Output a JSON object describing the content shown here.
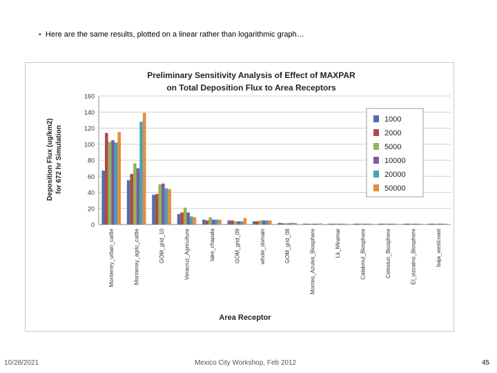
{
  "slide": {
    "bullet": "Here are the same results, plotted on a linear rather than logarithmic graph…",
    "footer_date": "10/28/2021",
    "footer_center": "Mexico City Workshop, Feb 2012",
    "page_number": "45"
  },
  "chart_data": {
    "type": "bar",
    "title": "Preliminary Sensitivity Analysis of Effect of MAXPAR",
    "subtitle": "on Total Deposition Flux to Area Receptors",
    "xlabel": "Area Receptor",
    "ylabel": "Deposition Flux (ug/km2)",
    "ylabel2": "for 672 hr Simulation",
    "ylim": [
      0,
      160
    ],
    "yticks": [
      0,
      20,
      40,
      60,
      80,
      100,
      120,
      140,
      160
    ],
    "grid": true,
    "legend_position": "top-right",
    "categories": [
      "Monterrey_urban_cattle",
      "Monterrey_agric_cattle",
      "GOM_grid_10",
      "Veracruz_Agriculture",
      "lake_chapala",
      "GOM_grid_09",
      "whole_domain",
      "GOM_grid_08",
      "Montes_Azules_Biosphere",
      "Lk_Miramar",
      "Calakmul_Biosphere",
      "Celestun_Biosphere",
      "El_vizcaino_Biosphere",
      "baja_westcoast"
    ],
    "series": [
      {
        "name": "1000",
        "color": "#4f6fa8",
        "values": [
          67,
          55,
          37,
          13,
          6,
          5,
          4,
          2,
          1,
          1,
          1,
          1,
          1,
          1
        ]
      },
      {
        "name": "2000",
        "color": "#b04a45",
        "values": [
          114,
          63,
          38,
          15,
          5,
          5,
          4,
          1.5,
          1,
          1,
          1,
          1,
          1,
          1
        ]
      },
      {
        "name": "5000",
        "color": "#93b457",
        "values": [
          103,
          76,
          50,
          21,
          9,
          4,
          5,
          1.5,
          1,
          1,
          1,
          1,
          1,
          1
        ]
      },
      {
        "name": "10000",
        "color": "#7a5d99",
        "values": [
          105,
          70,
          51,
          15,
          6,
          4,
          5,
          1.5,
          1,
          1,
          1,
          1,
          1,
          1
        ]
      },
      {
        "name": "20000",
        "color": "#46a1bb",
        "values": [
          102,
          128,
          45,
          10,
          6,
          4,
          5,
          2,
          1,
          1,
          1,
          1,
          1,
          1
        ]
      },
      {
        "name": "50000",
        "color": "#e88c3c",
        "values": [
          115,
          139,
          44,
          9,
          6,
          8,
          5,
          2,
          1.5,
          1,
          1,
          1,
          1,
          1
        ]
      }
    ]
  }
}
